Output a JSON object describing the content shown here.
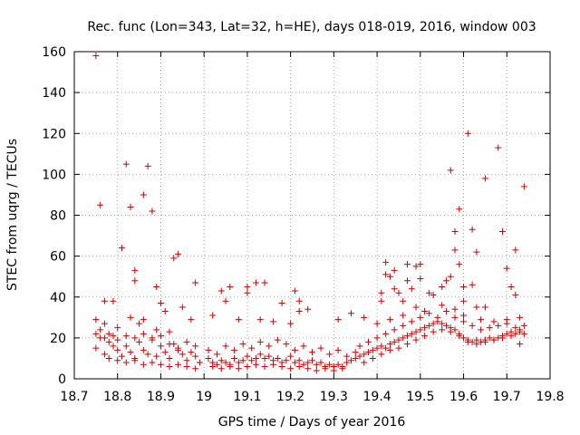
{
  "chart_data": {
    "type": "scatter",
    "title": "Rec. func (Lon=343, Lat=32, h=HE), days 018-019, 2016, window 003",
    "xlabel": "GPS time / Days of year 2016",
    "ylabel": "STEC from uqrg / TECUs",
    "xlim": [
      18.7,
      19.8
    ],
    "ylim": [
      0,
      160
    ],
    "grid": true,
    "marker": "+",
    "marker_color": "#cc0000",
    "x_ticks": [
      18.7,
      18.8,
      18.9,
      19.0,
      19.1,
      19.2,
      19.3,
      19.4,
      19.5,
      19.6,
      19.7,
      19.8
    ],
    "x_tick_labels": [
      "18.7",
      "18.8",
      "18.9",
      "19",
      "19.1",
      "19.2",
      "19.3",
      "19.4",
      "19.5",
      "19.6",
      "19.7",
      "19.8"
    ],
    "y_ticks": [
      0,
      20,
      40,
      60,
      80,
      100,
      120,
      140,
      160
    ],
    "y_tick_labels": [
      "0",
      "20",
      "40",
      "60",
      "80",
      "100",
      "120",
      "140",
      "160"
    ],
    "series": [
      {
        "name": "STEC",
        "points": [
          [
            18.75,
            158
          ],
          [
            18.76,
            85
          ],
          [
            18.81,
            64
          ],
          [
            18.82,
            105
          ],
          [
            18.83,
            84
          ],
          [
            18.84,
            53
          ],
          [
            18.84,
            48
          ],
          [
            18.86,
            90
          ],
          [
            18.87,
            104
          ],
          [
            18.88,
            82
          ],
          [
            18.93,
            59
          ],
          [
            18.94,
            61
          ],
          [
            18.97,
            29
          ],
          [
            18.98,
            47
          ],
          [
            18.75,
            29
          ],
          [
            18.77,
            27
          ],
          [
            18.77,
            38
          ],
          [
            18.79,
            38
          ],
          [
            18.8,
            25
          ],
          [
            18.83,
            30
          ],
          [
            18.85,
            27
          ],
          [
            18.86,
            29
          ],
          [
            18.89,
            24
          ],
          [
            18.89,
            45
          ],
          [
            18.9,
            37
          ],
          [
            18.91,
            33
          ],
          [
            18.92,
            23
          ],
          [
            18.95,
            35
          ],
          [
            19.02,
            31
          ],
          [
            19.04,
            43
          ],
          [
            19.05,
            38
          ],
          [
            19.06,
            45
          ],
          [
            19.08,
            29
          ],
          [
            19.1,
            45
          ],
          [
            19.1,
            42
          ],
          [
            19.12,
            47
          ],
          [
            19.14,
            47
          ],
          [
            19.13,
            29
          ],
          [
            19.16,
            28
          ],
          [
            19.18,
            37
          ],
          [
            19.2,
            27
          ],
          [
            19.21,
            43
          ],
          [
            19.22,
            38
          ],
          [
            19.22,
            33
          ],
          [
            19.24,
            34
          ],
          [
            19.31,
            29
          ],
          [
            19.34,
            32
          ],
          [
            19.37,
            30
          ],
          [
            19.41,
            42
          ],
          [
            19.41,
            38
          ],
          [
            19.42,
            57
          ],
          [
            19.42,
            51
          ],
          [
            19.43,
            50
          ],
          [
            19.44,
            44
          ],
          [
            19.44,
            53
          ],
          [
            19.45,
            42
          ],
          [
            19.46,
            38
          ],
          [
            19.47,
            56
          ],
          [
            19.47,
            48
          ],
          [
            19.48,
            44
          ],
          [
            19.49,
            55
          ],
          [
            19.5,
            56
          ],
          [
            19.5,
            49
          ],
          [
            19.52,
            42
          ],
          [
            19.53,
            41
          ],
          [
            19.55,
            45
          ],
          [
            19.56,
            48
          ],
          [
            19.57,
            102
          ],
          [
            19.57,
            50
          ],
          [
            19.58,
            72
          ],
          [
            19.58,
            63
          ],
          [
            19.59,
            83
          ],
          [
            19.59,
            56
          ],
          [
            19.6,
            45
          ],
          [
            19.6,
            38
          ],
          [
            19.61,
            120
          ],
          [
            19.62,
            73
          ],
          [
            19.62,
            46
          ],
          [
            19.63,
            62
          ],
          [
            19.63,
            35
          ],
          [
            19.65,
            98
          ],
          [
            19.65,
            35
          ],
          [
            19.68,
            113
          ],
          [
            19.69,
            72
          ],
          [
            19.7,
            54
          ],
          [
            19.71,
            45
          ],
          [
            19.72,
            63
          ],
          [
            19.72,
            41
          ],
          [
            19.74,
            94
          ],
          [
            19.73,
            17
          ],
          [
            18.75,
            22
          ],
          [
            18.75,
            15
          ],
          [
            18.76,
            20
          ],
          [
            18.77,
            12
          ],
          [
            18.78,
            18
          ],
          [
            18.79,
            16
          ],
          [
            18.8,
            14
          ],
          [
            18.81,
            11
          ],
          [
            18.82,
            16
          ],
          [
            18.83,
            13
          ],
          [
            18.84,
            10
          ],
          [
            18.85,
            18
          ],
          [
            18.86,
            14
          ],
          [
            18.87,
            12
          ],
          [
            18.88,
            20
          ],
          [
            18.89,
            11
          ],
          [
            18.9,
            16
          ],
          [
            18.91,
            13
          ],
          [
            18.92,
            10
          ],
          [
            18.93,
            17
          ],
          [
            18.94,
            14
          ],
          [
            18.95,
            12
          ],
          [
            18.96,
            9
          ],
          [
            18.97,
            13
          ],
          [
            18.98,
            11
          ],
          [
            18.99,
            8
          ],
          [
            18.76,
            24
          ],
          [
            18.77,
            20
          ],
          [
            18.78,
            22
          ],
          [
            18.79,
            21
          ],
          [
            18.8,
            19
          ],
          [
            18.82,
            21
          ],
          [
            18.84,
            20
          ],
          [
            18.86,
            22
          ],
          [
            18.88,
            19
          ],
          [
            18.9,
            21
          ],
          [
            18.92,
            17
          ],
          [
            18.94,
            15
          ],
          [
            18.96,
            18
          ],
          [
            18.98,
            16
          ],
          [
            18.78,
            10
          ],
          [
            18.8,
            9
          ],
          [
            18.82,
            8
          ],
          [
            18.84,
            9
          ],
          [
            18.86,
            7
          ],
          [
            18.88,
            8
          ],
          [
            18.9,
            7
          ],
          [
            18.92,
            6
          ],
          [
            18.94,
            7
          ],
          [
            18.96,
            6
          ],
          [
            18.98,
            5
          ],
          [
            19.01,
            10
          ],
          [
            19.02,
            8
          ],
          [
            19.03,
            7
          ],
          [
            19.04,
            9
          ],
          [
            19.05,
            8
          ],
          [
            19.06,
            7
          ],
          [
            19.07,
            10
          ],
          [
            19.08,
            8
          ],
          [
            19.09,
            9
          ],
          [
            19.1,
            11
          ],
          [
            19.11,
            9
          ],
          [
            19.12,
            10
          ],
          [
            19.13,
            12
          ],
          [
            19.14,
            10
          ],
          [
            19.15,
            11
          ],
          [
            19.16,
            9
          ],
          [
            19.17,
            10
          ],
          [
            19.18,
            8
          ],
          [
            19.19,
            9
          ],
          [
            19.2,
            11
          ],
          [
            19.21,
            8
          ],
          [
            19.22,
            9
          ],
          [
            19.23,
            7
          ],
          [
            19.24,
            8
          ],
          [
            19.25,
            9
          ],
          [
            19.26,
            7
          ],
          [
            19.27,
            8
          ],
          [
            19.28,
            6
          ],
          [
            19.29,
            7
          ],
          [
            19.3,
            6
          ],
          [
            19.31,
            7
          ],
          [
            19.32,
            6
          ],
          [
            19.33,
            8
          ],
          [
            19.01,
            14
          ],
          [
            19.03,
            12
          ],
          [
            19.05,
            16
          ],
          [
            19.07,
            14
          ],
          [
            19.09,
            17
          ],
          [
            19.11,
            15
          ],
          [
            19.13,
            18
          ],
          [
            19.15,
            16
          ],
          [
            19.17,
            19
          ],
          [
            19.19,
            17
          ],
          [
            19.21,
            14
          ],
          [
            19.23,
            16
          ],
          [
            19.25,
            13
          ],
          [
            19.27,
            15
          ],
          [
            19.29,
            12
          ],
          [
            19.31,
            14
          ],
          [
            19.33,
            11
          ],
          [
            19.35,
            13
          ],
          [
            19.02,
            6
          ],
          [
            19.04,
            5
          ],
          [
            19.06,
            6
          ],
          [
            19.08,
            5
          ],
          [
            19.1,
            6
          ],
          [
            19.12,
            7
          ],
          [
            19.14,
            6
          ],
          [
            19.16,
            7
          ],
          [
            19.18,
            6
          ],
          [
            19.2,
            5
          ],
          [
            19.22,
            6
          ],
          [
            19.24,
            5
          ],
          [
            19.26,
            4
          ],
          [
            19.28,
            5
          ],
          [
            19.3,
            4
          ],
          [
            19.32,
            5
          ],
          [
            19.34,
            9
          ],
          [
            19.35,
            10
          ],
          [
            19.36,
            11
          ],
          [
            19.37,
            12
          ],
          [
            19.38,
            13
          ],
          [
            19.39,
            14
          ],
          [
            19.4,
            15
          ],
          [
            19.41,
            16
          ],
          [
            19.42,
            15
          ],
          [
            19.43,
            17
          ],
          [
            19.44,
            18
          ],
          [
            19.45,
            19
          ],
          [
            19.46,
            20
          ],
          [
            19.47,
            21
          ],
          [
            19.48,
            22
          ],
          [
            19.49,
            23
          ],
          [
            19.5,
            24
          ],
          [
            19.51,
            25
          ],
          [
            19.52,
            26
          ],
          [
            19.53,
            27
          ],
          [
            19.54,
            28
          ],
          [
            19.55,
            27
          ],
          [
            19.56,
            26
          ],
          [
            19.57,
            25
          ],
          [
            19.58,
            24
          ],
          [
            19.59,
            22
          ],
          [
            19.6,
            20
          ],
          [
            19.61,
            19
          ],
          [
            19.62,
            18
          ],
          [
            19.63,
            19
          ],
          [
            19.64,
            18
          ],
          [
            19.65,
            19
          ],
          [
            19.66,
            20
          ],
          [
            19.67,
            19
          ],
          [
            19.68,
            20
          ],
          [
            19.69,
            21
          ],
          [
            19.7,
            22
          ],
          [
            19.71,
            21
          ],
          [
            19.72,
            22
          ],
          [
            19.73,
            23
          ],
          [
            19.74,
            22
          ],
          [
            19.36,
            16
          ],
          [
            19.38,
            18
          ],
          [
            19.4,
            20
          ],
          [
            19.42,
            22
          ],
          [
            19.44,
            24
          ],
          [
            19.46,
            26
          ],
          [
            19.48,
            28
          ],
          [
            19.5,
            30
          ],
          [
            19.52,
            32
          ],
          [
            19.54,
            30
          ],
          [
            19.56,
            33
          ],
          [
            19.58,
            30
          ],
          [
            19.6,
            28
          ],
          [
            19.62,
            26
          ],
          [
            19.64,
            24
          ],
          [
            19.66,
            25
          ],
          [
            19.68,
            26
          ],
          [
            19.7,
            27
          ],
          [
            19.72,
            25
          ],
          [
            19.74,
            26
          ],
          [
            19.37,
            8
          ],
          [
            19.39,
            10
          ],
          [
            19.41,
            12
          ],
          [
            19.43,
            14
          ],
          [
            19.45,
            15
          ],
          [
            19.47,
            17
          ],
          [
            19.49,
            19
          ],
          [
            19.51,
            21
          ],
          [
            19.53,
            23
          ],
          [
            19.55,
            24
          ],
          [
            19.57,
            23
          ],
          [
            19.59,
            21
          ],
          [
            19.61,
            18
          ],
          [
            19.63,
            17
          ],
          [
            19.65,
            18
          ],
          [
            19.67,
            19
          ],
          [
            19.69,
            20
          ],
          [
            19.71,
            23
          ],
          [
            19.73,
            24
          ],
          [
            19.4,
            27
          ],
          [
            19.43,
            29
          ],
          [
            19.46,
            31
          ],
          [
            19.49,
            35
          ],
          [
            19.51,
            33
          ],
          [
            19.55,
            36
          ],
          [
            19.58,
            34
          ],
          [
            19.6,
            31
          ],
          [
            19.64,
            29
          ],
          [
            19.67,
            28
          ],
          [
            19.7,
            29
          ],
          [
            19.73,
            30
          ]
        ]
      }
    ]
  }
}
